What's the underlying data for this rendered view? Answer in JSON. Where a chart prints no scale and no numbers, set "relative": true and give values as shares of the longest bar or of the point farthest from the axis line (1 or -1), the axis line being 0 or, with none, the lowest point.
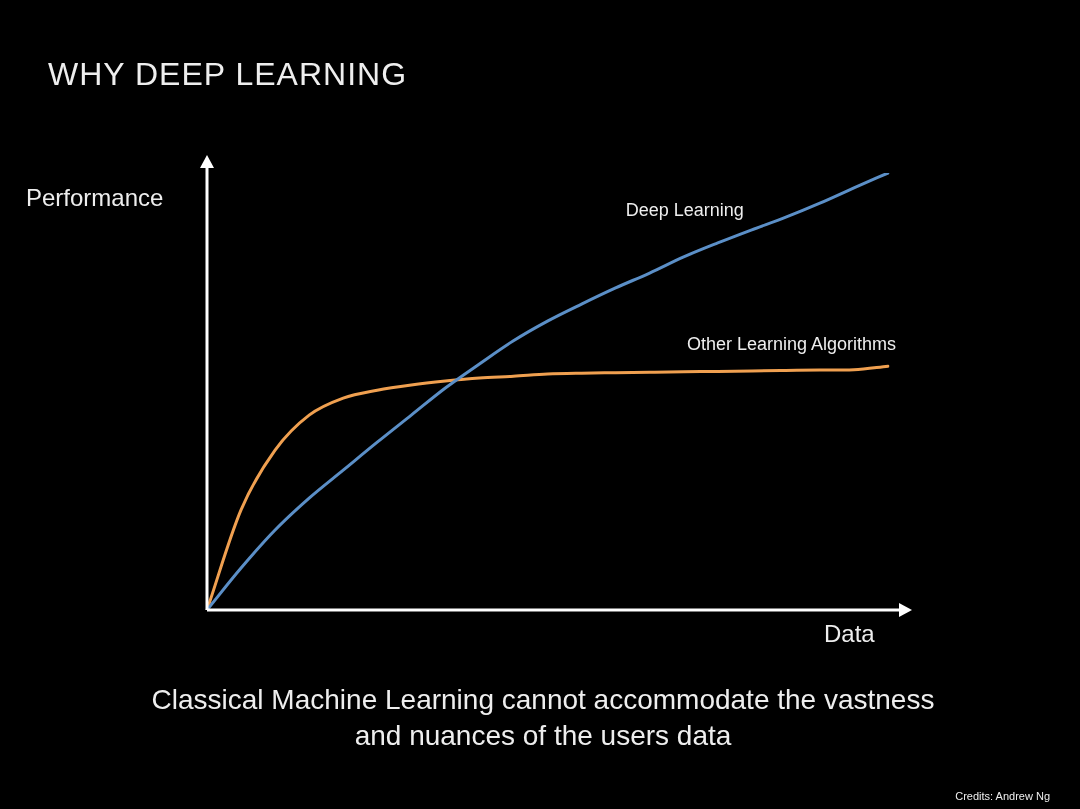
{
  "chart_data": {
    "type": "line",
    "title": "WHY DEEP LEARNING",
    "xlabel": "Data",
    "ylabel": "Performance",
    "relative": true,
    "legend": false,
    "marker": "none",
    "line_style": "solid",
    "categories": [
      null,
      null,
      null,
      null,
      null,
      null,
      null,
      null,
      null,
      null,
      null,
      null,
      null,
      null,
      null,
      null,
      null,
      null,
      null,
      null,
      null
    ],
    "series": [
      {
        "name": "Deep Learning",
        "color": "#5b8fc7",
        "values": [
          0,
          0.096,
          0.183,
          0.256,
          0.32,
          0.384,
          0.446,
          0.508,
          0.563,
          0.616,
          0.661,
          0.7,
          0.737,
          0.771,
          0.808,
          0.84,
          0.87,
          0.899,
          0.931,
          0.966,
          1.0
        ]
      },
      {
        "name": "Other Learning Algorithms",
        "color": "#f0a050",
        "values": [
          0,
          0.229,
          0.366,
          0.446,
          0.485,
          0.503,
          0.515,
          0.524,
          0.531,
          0.535,
          0.54,
          0.542,
          0.543,
          0.544,
          0.545,
          0.546,
          0.547,
          0.548,
          0.549,
          0.55,
          0.558
        ]
      }
    ],
    "annotations": [
      "Classical Machine Learning cannot accommodate the vastness and nuances of the users data",
      "Credits: Andrew Ng"
    ]
  }
}
